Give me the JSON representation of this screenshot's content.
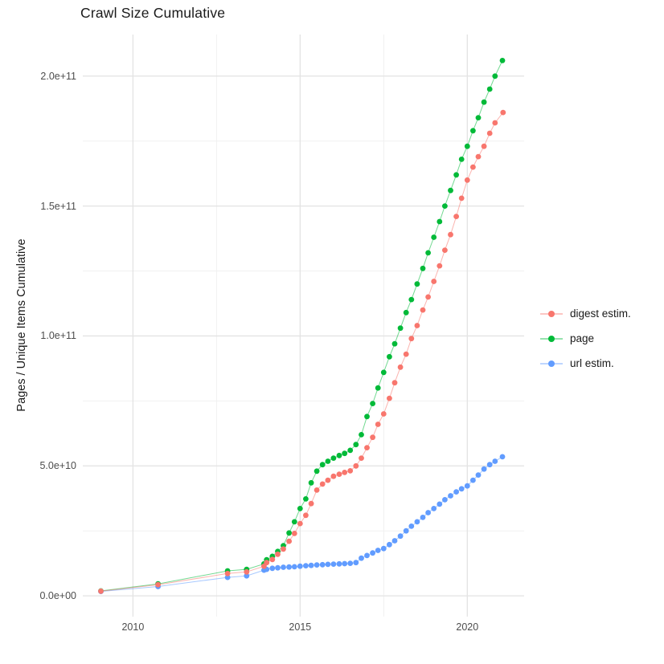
{
  "title": "Crawl Size Cumulative",
  "chart_data": {
    "type": "scatter",
    "title": "Crawl Size Cumulative",
    "xlabel": "",
    "ylabel": "Pages / Unique Items Cumulative",
    "grid": true,
    "legend_position": "right",
    "xlim": [
      2008.5,
      2021.7
    ],
    "ylim": [
      -8000000000.0,
      216000000000.0
    ],
    "x_ticks": {
      "values": [
        2010,
        2015,
        2020
      ],
      "labels": [
        "2010",
        "2015",
        "2020"
      ]
    },
    "x_minor": [
      2012.5,
      2017.5
    ],
    "y_ticks": {
      "values": [
        0,
        50000000000.0,
        100000000000.0,
        150000000000.0,
        200000000000.0
      ],
      "labels": [
        "0.0e+00",
        "5.0e+10",
        "1.0e+11",
        "1.5e+11",
        "2.0e+11"
      ]
    },
    "y_minor": [
      25000000000.0,
      75000000000.0,
      125000000000.0,
      175000000000.0
    ],
    "series": [
      {
        "name": "digest estim.",
        "color": "#F8766D",
        "points": [
          [
            2009.04,
            1800000000.0
          ],
          [
            2010.75,
            4300000000.0
          ],
          [
            2012.83,
            8600000000.0
          ],
          [
            2013.4,
            9200000000.0
          ],
          [
            2013.92,
            11400000000.0
          ],
          [
            2014.0,
            12800000000.0
          ],
          [
            2014.17,
            14000000000.0
          ],
          [
            2014.33,
            16000000000.0
          ],
          [
            2014.5,
            18000000000.0
          ],
          [
            2014.67,
            21000000000.0
          ],
          [
            2014.83,
            24000000000.0
          ],
          [
            2015.0,
            27800000000.0
          ],
          [
            2015.17,
            31000000000.0
          ],
          [
            2015.33,
            35500000000.0
          ],
          [
            2015.5,
            40700000000.0
          ],
          [
            2015.67,
            43000000000.0
          ],
          [
            2015.83,
            44500000000.0
          ],
          [
            2016.0,
            46000000000.0
          ],
          [
            2016.17,
            46800000000.0
          ],
          [
            2016.33,
            47500000000.0
          ],
          [
            2016.5,
            48100000000.0
          ],
          [
            2016.67,
            50000000000.0
          ],
          [
            2016.83,
            53000000000.0
          ],
          [
            2017.0,
            57000000000.0
          ],
          [
            2017.17,
            61000000000.0
          ],
          [
            2017.33,
            66000000000.0
          ],
          [
            2017.5,
            70000000000.0
          ],
          [
            2017.67,
            76000000000.0
          ],
          [
            2017.83,
            82000000000.0
          ],
          [
            2018.0,
            88000000000.0
          ],
          [
            2018.17,
            93000000000.0
          ],
          [
            2018.33,
            99000000000.0
          ],
          [
            2018.5,
            104000000000.0
          ],
          [
            2018.67,
            110000000000.0
          ],
          [
            2018.83,
            115000000000.0
          ],
          [
            2019.0,
            121000000000.0
          ],
          [
            2019.17,
            127000000000.0
          ],
          [
            2019.33,
            133000000000.0
          ],
          [
            2019.5,
            139000000000.0
          ],
          [
            2019.67,
            146000000000.0
          ],
          [
            2019.83,
            153000000000.0
          ],
          [
            2020.0,
            160000000000.0
          ],
          [
            2020.17,
            165000000000.0
          ],
          [
            2020.33,
            169000000000.0
          ],
          [
            2020.5,
            173000000000.0
          ],
          [
            2020.67,
            178000000000.0
          ],
          [
            2020.83,
            182000000000.0
          ],
          [
            2021.07,
            186000000000.0
          ]
        ]
      },
      {
        "name": "page",
        "color": "#00BA38",
        "points": [
          [
            2009.04,
            1900000000.0
          ],
          [
            2010.75,
            4600000000.0
          ],
          [
            2012.83,
            9600000000.0
          ],
          [
            2013.4,
            10200000000.0
          ],
          [
            2013.92,
            12300000000.0
          ],
          [
            2014.0,
            13900000000.0
          ],
          [
            2014.17,
            15200000000.0
          ],
          [
            2014.33,
            17100000000.0
          ],
          [
            2014.5,
            19300000000.0
          ],
          [
            2014.67,
            24200000000.0
          ],
          [
            2014.83,
            28500000000.0
          ],
          [
            2015.0,
            33600000000.0
          ],
          [
            2015.17,
            37300000000.0
          ],
          [
            2015.33,
            43500000000.0
          ],
          [
            2015.5,
            48000000000.0
          ],
          [
            2015.67,
            50500000000.0
          ],
          [
            2015.83,
            51800000000.0
          ],
          [
            2016.0,
            53000000000.0
          ],
          [
            2016.17,
            54000000000.0
          ],
          [
            2016.33,
            54800000000.0
          ],
          [
            2016.5,
            56000000000.0
          ],
          [
            2016.67,
            58200000000.0
          ],
          [
            2016.83,
            62000000000.0
          ],
          [
            2017.0,
            69000000000.0
          ],
          [
            2017.17,
            74000000000.0
          ],
          [
            2017.33,
            80000000000.0
          ],
          [
            2017.5,
            86000000000.0
          ],
          [
            2017.67,
            92000000000.0
          ],
          [
            2017.83,
            97000000000.0
          ],
          [
            2018.0,
            103000000000.0
          ],
          [
            2018.17,
            109000000000.0
          ],
          [
            2018.33,
            114000000000.0
          ],
          [
            2018.5,
            120000000000.0
          ],
          [
            2018.67,
            126000000000.0
          ],
          [
            2018.83,
            132000000000.0
          ],
          [
            2019.0,
            138000000000.0
          ],
          [
            2019.17,
            144000000000.0
          ],
          [
            2019.33,
            150000000000.0
          ],
          [
            2019.5,
            156000000000.0
          ],
          [
            2019.67,
            162000000000.0
          ],
          [
            2019.83,
            168000000000.0
          ],
          [
            2020.0,
            173000000000.0
          ],
          [
            2020.17,
            179000000000.0
          ],
          [
            2020.33,
            184000000000.0
          ],
          [
            2020.5,
            190000000000.0
          ],
          [
            2020.67,
            195000000000.0
          ],
          [
            2020.83,
            200000000000.0
          ],
          [
            2021.05,
            206000000000.0
          ]
        ]
      },
      {
        "name": "url estim.",
        "color": "#619CFF",
        "points": [
          [
            2009.04,
            1700000000.0
          ],
          [
            2010.75,
            3600000000.0
          ],
          [
            2012.83,
            7100000000.0
          ],
          [
            2013.4,
            7700000000.0
          ],
          [
            2013.92,
            9900000000.0
          ],
          [
            2014.0,
            10200000000.0
          ],
          [
            2014.17,
            10600000000.0
          ],
          [
            2014.33,
            10800000000.0
          ],
          [
            2014.5,
            11000000000.0
          ],
          [
            2014.67,
            11100000000.0
          ],
          [
            2014.83,
            11200000000.0
          ],
          [
            2015.0,
            11400000000.0
          ],
          [
            2015.17,
            11600000000.0
          ],
          [
            2015.33,
            11700000000.0
          ],
          [
            2015.5,
            11900000000.0
          ],
          [
            2015.67,
            12000000000.0
          ],
          [
            2015.83,
            12100000000.0
          ],
          [
            2016.0,
            12200000000.0
          ],
          [
            2016.17,
            12300000000.0
          ],
          [
            2016.33,
            12400000000.0
          ],
          [
            2016.5,
            12500000000.0
          ],
          [
            2016.67,
            12800000000.0
          ],
          [
            2016.83,
            14500000000.0
          ],
          [
            2017.0,
            15500000000.0
          ],
          [
            2017.17,
            16500000000.0
          ],
          [
            2017.33,
            17500000000.0
          ],
          [
            2017.5,
            18200000000.0
          ],
          [
            2017.67,
            19700000000.0
          ],
          [
            2017.83,
            21200000000.0
          ],
          [
            2018.0,
            23000000000.0
          ],
          [
            2018.17,
            25000000000.0
          ],
          [
            2018.33,
            26800000000.0
          ],
          [
            2018.5,
            28500000000.0
          ],
          [
            2018.67,
            30200000000.0
          ],
          [
            2018.83,
            32000000000.0
          ],
          [
            2019.0,
            33600000000.0
          ],
          [
            2019.17,
            35300000000.0
          ],
          [
            2019.33,
            37000000000.0
          ],
          [
            2019.5,
            38500000000.0
          ],
          [
            2019.67,
            40000000000.0
          ],
          [
            2019.83,
            41200000000.0
          ],
          [
            2020.0,
            42300000000.0
          ],
          [
            2020.17,
            44500000000.0
          ],
          [
            2020.33,
            46500000000.0
          ],
          [
            2020.5,
            48800000000.0
          ],
          [
            2020.67,
            50500000000.0
          ],
          [
            2020.83,
            51800000000.0
          ],
          [
            2021.05,
            53500000000.0
          ]
        ]
      }
    ]
  }
}
